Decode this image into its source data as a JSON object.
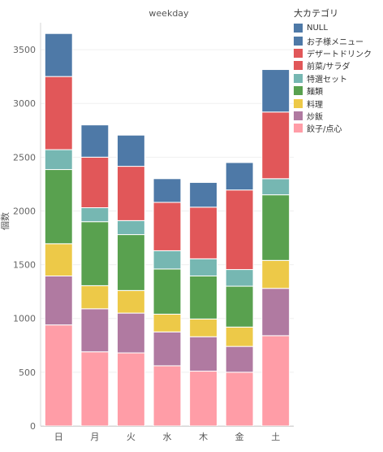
{
  "chart_data": {
    "type": "bar",
    "stacked": true,
    "title": "weekday",
    "ylabel": "個数",
    "xlabel": "",
    "ylim": [
      0,
      3750
    ],
    "yticks": [
      0,
      500,
      1000,
      1500,
      2000,
      2500,
      3000,
      3500
    ],
    "grid": true,
    "legend_position": "top-right",
    "legend_title": "大カテゴリ",
    "categories": [
      "日",
      "月",
      "火",
      "水",
      "木",
      "金",
      "土"
    ],
    "series": [
      {
        "name": "餃子/点心",
        "color": "#FF9DA7",
        "values": [
          940,
          690,
          680,
          560,
          510,
          500,
          840
        ]
      },
      {
        "name": "炒飯",
        "color": "#B07AA1",
        "values": [
          455,
          400,
          370,
          315,
          320,
          240,
          440
        ]
      },
      {
        "name": "料理",
        "color": "#EDC948",
        "values": [
          300,
          215,
          210,
          165,
          165,
          180,
          260
        ]
      },
      {
        "name": "麺類",
        "color": "#59A14F",
        "values": [
          690,
          595,
          520,
          420,
          400,
          380,
          610
        ]
      },
      {
        "name": "特選セット",
        "color": "#76B7B2",
        "values": [
          185,
          130,
          130,
          170,
          160,
          155,
          150
        ]
      },
      {
        "name": "前菜/サラダ",
        "color": "#E15759",
        "values": [
          680,
          470,
          505,
          450,
          480,
          740,
          620
        ]
      },
      {
        "name": "デザートドリンク",
        "color": "#E15759",
        "values": [
          0,
          0,
          0,
          0,
          0,
          0,
          0
        ]
      },
      {
        "name": "お子様メニュー",
        "color": "#4E79A7",
        "values": [
          400,
          300,
          290,
          220,
          230,
          255,
          395
        ]
      },
      {
        "name": "NULL",
        "color": "#4E79A7",
        "values": [
          0,
          0,
          0,
          0,
          0,
          0,
          0
        ]
      }
    ]
  },
  "legend": {
    "title": "大カテゴリ",
    "items": [
      {
        "label": "NULL",
        "color": "#4E79A7"
      },
      {
        "label": "お子様メニュー",
        "color": "#4E79A7"
      },
      {
        "label": "デザートドリンク",
        "color": "#E15759"
      },
      {
        "label": "前菜/サラダ",
        "color": "#E15759"
      },
      {
        "label": "特選セット",
        "color": "#76B7B2"
      },
      {
        "label": "麺類",
        "color": "#59A14F"
      },
      {
        "label": "料理",
        "color": "#EDC948"
      },
      {
        "label": "炒飯",
        "color": "#B07AA1"
      },
      {
        "label": "餃子/点心",
        "color": "#FF9DA7"
      }
    ]
  }
}
